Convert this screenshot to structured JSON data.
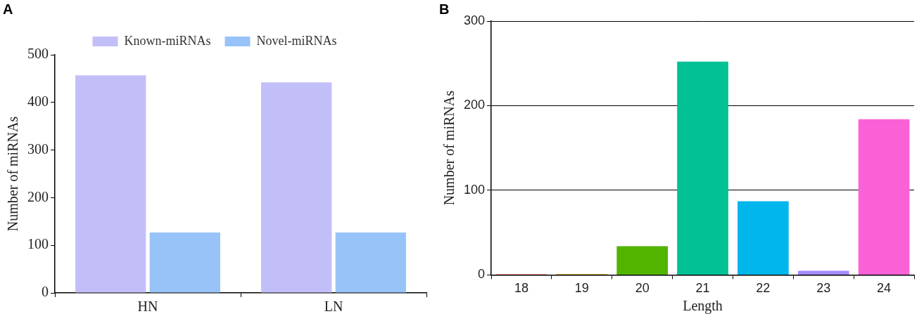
{
  "chart_data": [
    {
      "type": "bar",
      "title": "A",
      "categories": [
        "HN",
        "LN"
      ],
      "series": [
        {
          "name": "Known-miRNAs",
          "color": "#c2bff8",
          "values": [
            457,
            442
          ]
        },
        {
          "name": "Novel-miRNAs",
          "color": "#98c3f8",
          "values": [
            127,
            127
          ]
        }
      ],
      "y_label": "Number of miRNAs",
      "ylim": [
        0,
        500
      ],
      "yticks": [
        0,
        100,
        200,
        300,
        400,
        500
      ],
      "grid": false,
      "legend": "top"
    },
    {
      "type": "bar",
      "title": "B",
      "categories": [
        "18",
        "19",
        "20",
        "21",
        "22",
        "23",
        "24"
      ],
      "values": [
        1,
        1,
        34,
        252,
        87,
        5,
        184
      ],
      "colors": [
        "#f8766d",
        "#c49a00",
        "#53b400",
        "#00c094",
        "#00b6eb",
        "#a58aff",
        "#fb61d7"
      ],
      "x_label": "Length",
      "y_label": "Number of miRNAs",
      "ylim": [
        0,
        300
      ],
      "yticks": [
        0,
        100,
        200,
        300
      ],
      "grid": true
    }
  ]
}
